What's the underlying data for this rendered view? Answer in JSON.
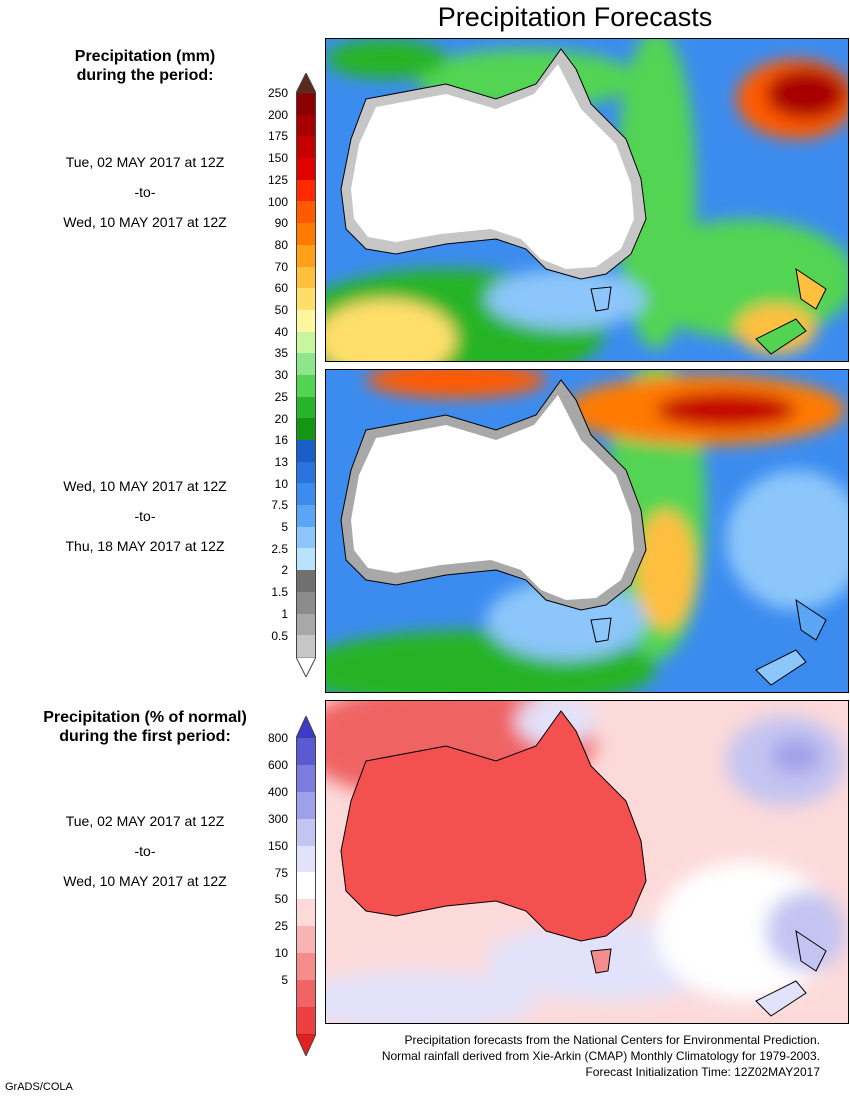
{
  "title": "Precipitation Forecasts",
  "legend1": {
    "heading": [
      "Precipitation (mm)",
      "during the period:"
    ],
    "levels": [
      "250",
      "200",
      "175",
      "150",
      "125",
      "100",
      "90",
      "80",
      "70",
      "60",
      "50",
      "40",
      "35",
      "30",
      "25",
      "20",
      "16",
      "13",
      "10",
      "7.5",
      "5",
      "2.5",
      "2",
      "1.5",
      "1",
      "0.5"
    ],
    "colors": [
      "#8c0000",
      "#a80000",
      "#c40000",
      "#e00000",
      "#ff2a00",
      "#ff5a00",
      "#ff7a00",
      "#ff9f1a",
      "#ffbf3f",
      "#ffdf6a",
      "#fff7a0",
      "#c8f5a0",
      "#8ee68c",
      "#52d452",
      "#28b428",
      "#149614",
      "#1a5fc8",
      "#2a72dc",
      "#3c8cf0",
      "#5aa6f5",
      "#8cc6fa",
      "#b9e2ff",
      "#707070",
      "#8c8c8c",
      "#a8a8a8",
      "#c6c6c6"
    ],
    "top_cap": "#5a2a1e",
    "bottom_cap": "#ffffff"
  },
  "period1": {
    "start": "Tue, 02 MAY 2017 at 12Z",
    "sep": "-to-",
    "end": "Wed, 10 MAY 2017 at 12Z"
  },
  "period2": {
    "start": "Wed, 10 MAY 2017 at 12Z",
    "sep": "-to-",
    "end": "Thu, 18 MAY 2017 at 12Z"
  },
  "legend2": {
    "heading": [
      "Precipitation (% of normal)",
      "during the first period:"
    ],
    "levels": [
      "800",
      "600",
      "400",
      "300",
      "150",
      "75",
      "50",
      "25",
      "10",
      "5"
    ],
    "colors": [
      "#5a5ad2",
      "#7d7de0",
      "#a0a0ea",
      "#c4c4f2",
      "#e2e2fa",
      "#ffffff",
      "#fcdada",
      "#f8b4b4",
      "#f48c8c",
      "#f06464",
      "#ec4040"
    ],
    "top_cap": "#3c3cc8",
    "bottom_cap": "#e61e1e"
  },
  "period3": {
    "start": "Tue, 02 MAY 2017 at 12Z",
    "sep": "-to-",
    "end": "Wed, 10 MAY 2017 at 12Z"
  },
  "footer": [
    "Precipitation forecasts from the National Centers for Environmental Prediction.",
    "Normal rainfall derived from Xie-Arkin (CMAP) Monthly Climatology for 1979-2003.",
    "Forecast Initialization Time: 12Z02MAY2017"
  ],
  "credit": "GrADS/COLA"
}
